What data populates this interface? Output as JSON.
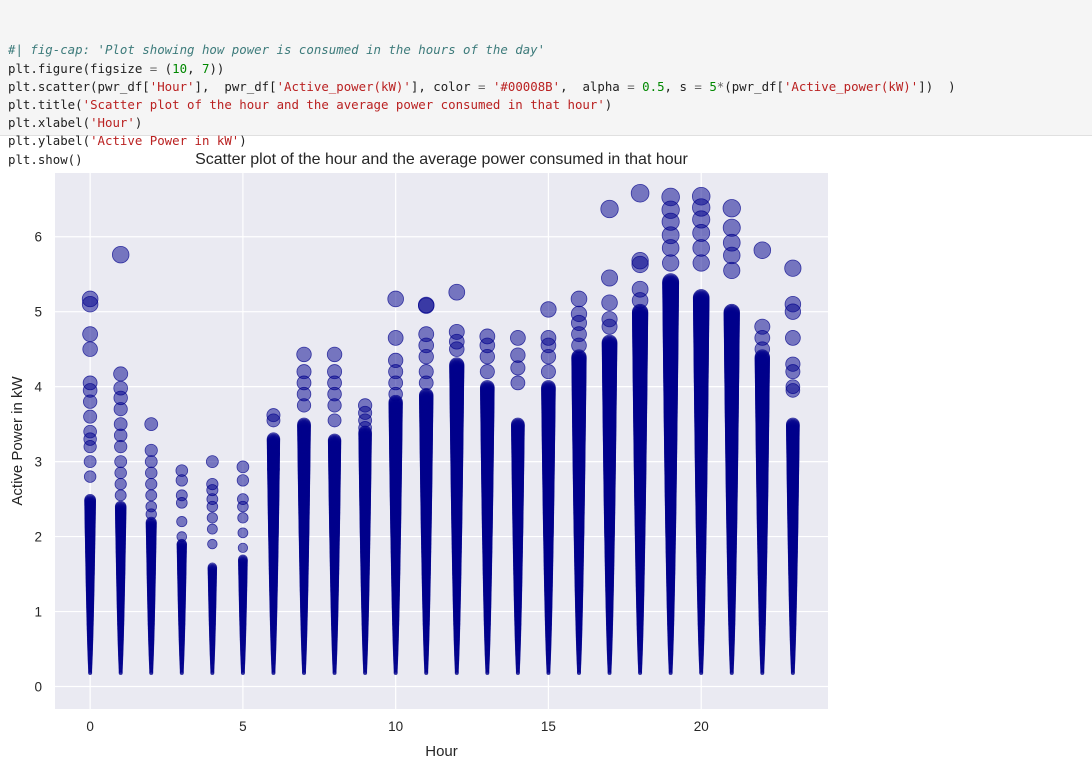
{
  "code": {
    "lines": [
      [
        {
          "t": "#| fig-cap: 'Plot showing how power is consumed in the hours of the day'",
          "c": "comment"
        }
      ],
      [
        {
          "t": "plt.figure(figsize ",
          "c": "fn"
        },
        {
          "t": "=",
          "c": "op"
        },
        {
          "t": " (",
          "c": "fn"
        },
        {
          "t": "10",
          "c": "num"
        },
        {
          "t": ", ",
          "c": "fn"
        },
        {
          "t": "7",
          "c": "num"
        },
        {
          "t": "))",
          "c": "fn"
        }
      ],
      [
        {
          "t": "plt.scatter(pwr_df[",
          "c": "fn"
        },
        {
          "t": "'Hour'",
          "c": "str"
        },
        {
          "t": "],  pwr_df[",
          "c": "fn"
        },
        {
          "t": "'Active_power(kW)'",
          "c": "str"
        },
        {
          "t": "], color ",
          "c": "fn"
        },
        {
          "t": "=",
          "c": "op"
        },
        {
          "t": " ",
          "c": "fn"
        },
        {
          "t": "'#00008B'",
          "c": "str"
        },
        {
          "t": ",  alpha ",
          "c": "fn"
        },
        {
          "t": "=",
          "c": "op"
        },
        {
          "t": " ",
          "c": "fn"
        },
        {
          "t": "0.5",
          "c": "num"
        },
        {
          "t": ", s ",
          "c": "fn"
        },
        {
          "t": "=",
          "c": "op"
        },
        {
          "t": " ",
          "c": "fn"
        },
        {
          "t": "5",
          "c": "num"
        },
        {
          "t": "*",
          "c": "op"
        },
        {
          "t": "(pwr_df[",
          "c": "fn"
        },
        {
          "t": "'Active_power(kW)'",
          "c": "str"
        },
        {
          "t": "])  )",
          "c": "fn"
        }
      ],
      [
        {
          "t": "plt.title(",
          "c": "fn"
        },
        {
          "t": "'Scatter plot of the hour and the average power consumed in that hour'",
          "c": "str"
        },
        {
          "t": ")",
          "c": "fn"
        }
      ],
      [
        {
          "t": "plt.xlabel(",
          "c": "fn"
        },
        {
          "t": "'Hour'",
          "c": "str"
        },
        {
          "t": ")",
          "c": "fn"
        }
      ],
      [
        {
          "t": "plt.ylabel(",
          "c": "fn"
        },
        {
          "t": "'Active Power in kW'",
          "c": "str"
        },
        {
          "t": ")",
          "c": "fn"
        }
      ],
      [
        {
          "t": "plt.show()",
          "c": "fn"
        }
      ]
    ]
  },
  "chart_data": {
    "type": "scatter",
    "title": "Scatter plot of the hour and the average power consumed in that hour",
    "xlabel": "Hour",
    "ylabel": "Active Power in kW",
    "xlim": [
      -1.15,
      24.15
    ],
    "ylim": [
      -0.3,
      6.85
    ],
    "x_ticks": [
      0,
      5,
      10,
      15,
      20
    ],
    "y_ticks": [
      0,
      1,
      2,
      3,
      4,
      5,
      6
    ],
    "grid": true,
    "background": "#eaeaf2",
    "point_color": "#00008B",
    "alpha": 0.5,
    "hours": [
      0,
      1,
      2,
      3,
      4,
      5,
      6,
      7,
      8,
      9,
      10,
      11,
      12,
      13,
      14,
      15,
      16,
      17,
      18,
      19,
      20,
      21,
      22,
      23
    ],
    "min_values": [
      0.18,
      0.18,
      0.18,
      0.18,
      0.18,
      0.18,
      0.18,
      0.18,
      0.18,
      0.18,
      0.18,
      0.18,
      0.18,
      0.18,
      0.18,
      0.18,
      0.18,
      0.18,
      0.18,
      0.18,
      0.18,
      0.18,
      0.18,
      0.18
    ],
    "dense_top": [
      2.5,
      2.4,
      2.2,
      1.9,
      1.6,
      1.7,
      3.3,
      3.5,
      3.3,
      3.4,
      3.8,
      3.9,
      4.3,
      4.0,
      3.5,
      4.0,
      4.4,
      4.6,
      5.0,
      5.4,
      5.2,
      5.0,
      4.4,
      3.5
    ],
    "outliers": [
      [
        5.17,
        5.1,
        4.7,
        4.5,
        4.05,
        3.95,
        3.8,
        3.6,
        3.4,
        3.3,
        3.2,
        3.0,
        2.8
      ],
      [
        5.76,
        4.17,
        3.98,
        3.85,
        3.7,
        3.5,
        3.35,
        3.2,
        3.0,
        2.85,
        2.7,
        2.55
      ],
      [
        3.5,
        3.15,
        3.0,
        2.85,
        2.7,
        2.55,
        2.4,
        2.3
      ],
      [
        2.88,
        2.75,
        2.55,
        2.45,
        2.2,
        2.0,
        1.9
      ],
      [
        3.0,
        2.7,
        2.62,
        2.5,
        2.4,
        2.25,
        2.1,
        1.9
      ],
      [
        2.93,
        2.75,
        2.5,
        2.4,
        2.25,
        2.05,
        1.85
      ],
      [
        3.62,
        3.55,
        3.3,
        3.1,
        2.9
      ],
      [
        4.43,
        4.2,
        4.05,
        3.9,
        3.75
      ],
      [
        4.43,
        4.2,
        4.05,
        3.9,
        3.75,
        3.55
      ],
      [
        3.75,
        3.65,
        3.55,
        3.45
      ],
      [
        5.17,
        4.65,
        4.35,
        4.2,
        4.05,
        3.9
      ],
      [
        5.09,
        5.08,
        4.7,
        4.55,
        4.4,
        4.2,
        4.05
      ],
      [
        5.26,
        4.73,
        4.6,
        4.5
      ],
      [
        4.67,
        4.55,
        4.4,
        4.2
      ],
      [
        4.65,
        4.42,
        4.25,
        4.05
      ],
      [
        5.03,
        4.65,
        4.55,
        4.4,
        4.2
      ],
      [
        5.17,
        4.97,
        4.85,
        4.7,
        4.55
      ],
      [
        6.37,
        5.45,
        5.12,
        4.9,
        4.8
      ],
      [
        6.58,
        5.68,
        5.63,
        5.3,
        5.15
      ],
      [
        6.53,
        6.36,
        6.2,
        6.02,
        5.85,
        5.65
      ],
      [
        6.54,
        6.39,
        6.23,
        6.05,
        5.85,
        5.65
      ],
      [
        6.38,
        6.12,
        5.92,
        5.75,
        5.55
      ],
      [
        5.82,
        4.8,
        4.65,
        4.5
      ],
      [
        5.58,
        5.1,
        5.0,
        4.65,
        4.3,
        4.2,
        4.0,
        3.95
      ]
    ]
  }
}
